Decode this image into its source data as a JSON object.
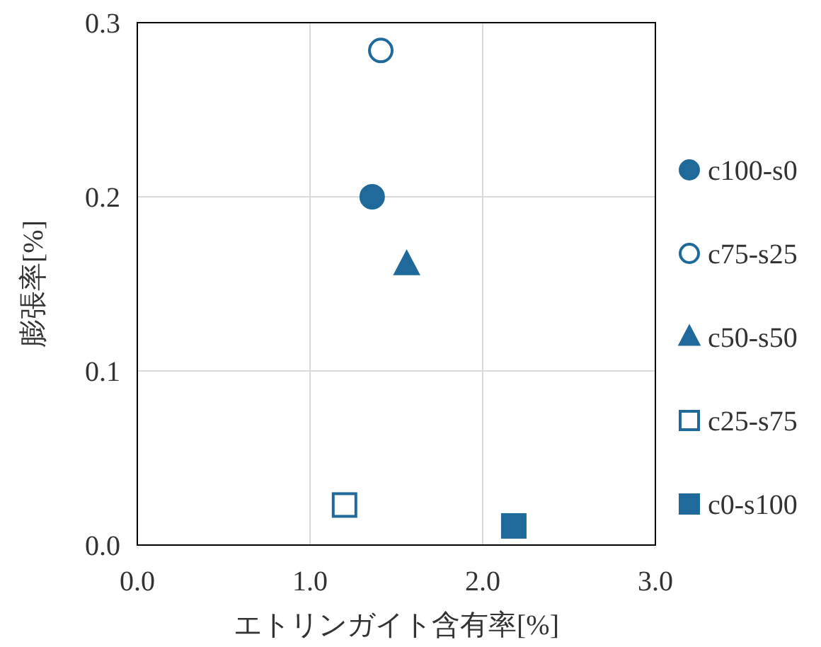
{
  "chart_data": {
    "type": "scatter",
    "xlabel": "エトリンガイト含有率[%]",
    "ylabel": "膨張率[%]",
    "xlim": [
      0,
      3
    ],
    "xticks": [
      {
        "value": 0,
        "label": "0.0"
      },
      {
        "value": 1,
        "label": "1.0"
      },
      {
        "value": 2,
        "label": "2.0"
      },
      {
        "value": 3,
        "label": "3.0"
      }
    ],
    "ylim": [
      0,
      0.3
    ],
    "yticks": [
      {
        "value": 0,
        "label": "0.0"
      },
      {
        "value": 0.1,
        "label": "0.1"
      },
      {
        "value": 0.2,
        "label": "0.2"
      },
      {
        "value": 0.3,
        "label": "0.3"
      }
    ],
    "grid": true,
    "legend": "right",
    "series": [
      {
        "name": "c100-s0",
        "color": "#1f6a9a",
        "marker": "circle",
        "x": [
          1.36
        ],
        "values": [
          0.2
        ]
      },
      {
        "name": "c75-s25",
        "color": "#1f6a9a",
        "marker": "circle-open",
        "x": [
          1.41
        ],
        "values": [
          0.284
        ]
      },
      {
        "name": "c50-s50",
        "color": "#1f6a9a",
        "marker": "triangle",
        "x": [
          1.56
        ],
        "values": [
          0.161
        ]
      },
      {
        "name": "c25-s75",
        "color": "#1f6a9a",
        "marker": "square-open",
        "x": [
          1.2
        ],
        "values": [
          0.023
        ]
      },
      {
        "name": "c0-s100",
        "color": "#1f6a9a",
        "marker": "square",
        "x": [
          2.18
        ],
        "values": [
          0.011
        ]
      }
    ]
  }
}
